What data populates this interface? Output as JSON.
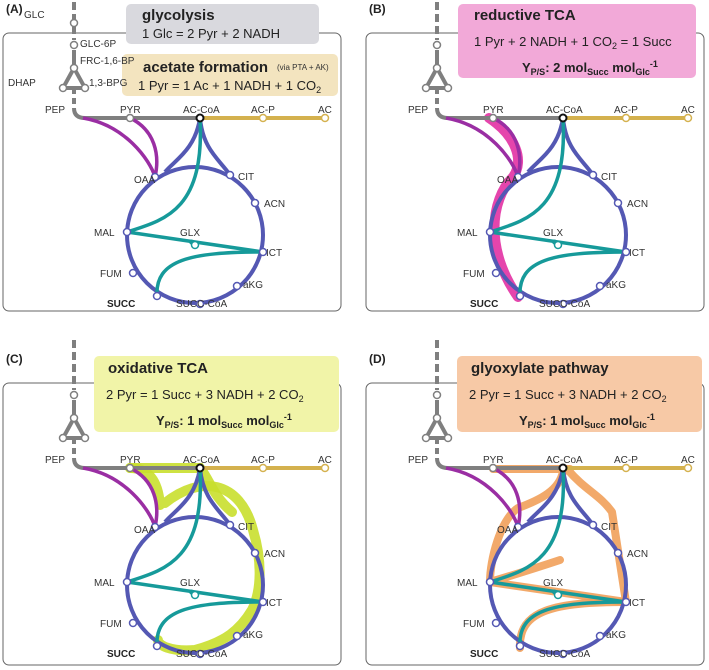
{
  "panels": [
    {
      "label": "(A)"
    },
    {
      "label": "(B)"
    },
    {
      "label": "(C)"
    },
    {
      "label": "(D)"
    }
  ],
  "metabolites": {
    "glc": "GLC",
    "glc6p": "GLC-6P",
    "frc16bp": "FRC-1,6-BP",
    "dhap": "DHAP",
    "bpg": "1,3-BPG",
    "pep": "PEP",
    "pyr": "PYR",
    "accoa": "AC-CoA",
    "acp": "AC-P",
    "ac": "AC",
    "oaa": "OAA",
    "cit": "CIT",
    "acn": "ACN",
    "mal": "MAL",
    "glx": "GLX",
    "ict": "ICT",
    "fum": "FUM",
    "akg": "aKG",
    "succ": "SUCC",
    "succcoa": "SUCC-CoA"
  },
  "boxes": {
    "glycolysis": {
      "title": "glycolysis",
      "equation": "1 Glc = 2 Pyr + 2 NADH",
      "color": "#d9d9de"
    },
    "acetate": {
      "title": "acetate formation",
      "note": "(via PTA + AK)",
      "equation": "1 Pyr = 1 Ac + 1 NADH + 1 CO",
      "eq_sub": "2",
      "color": "#f3e4bf"
    },
    "reductive": {
      "title": "reductive TCA",
      "equation": "1 Pyr + 2 NADH + 1 CO",
      "eq_sub": "2",
      "eq_tail": " = 1 Succ",
      "yield_y": "Y",
      "yield_ys": "P/S",
      "yield_val": ": 2 mol",
      "yield_s1": "Succ",
      "yield_mol": " mol",
      "yield_s2": "Glc",
      "yield_exp": "-1",
      "color": "#f2a9d8"
    },
    "oxidative": {
      "title": "oxidative TCA",
      "equation": "2 Pyr = 1 Succ + 3 NADH + 2 CO",
      "eq_sub": "2",
      "yield_y": "Y",
      "yield_ys": "P/S",
      "yield_val": ": 1 mol",
      "yield_s1": "Succ",
      "yield_mol": " mol",
      "yield_s2": "Glc",
      "yield_exp": "-1",
      "color": "#f1f4a8"
    },
    "glyoxylate": {
      "title": "glyoxylate pathway",
      "equation": "2 Pyr = 1 Succ + 3 NADH + 2 CO",
      "eq_sub": "2",
      "yield_y": "Y",
      "yield_ys": "P/S",
      "yield_val": ": 1 mol",
      "yield_s1": "Succ",
      "yield_mol": " mol",
      "yield_s2": "Glc",
      "yield_exp": "-1",
      "color": "#f7c9a6"
    }
  },
  "colors": {
    "glycolysis_line": "#7f7f7f",
    "acetate_line": "#d4b14e",
    "tca_ring": "#5458b3",
    "glyoxylate_shunt": "#169a9a",
    "anaplerotic": "#9a2ea3",
    "highlight_reductive": "#e0259e",
    "highlight_oxidative": "#c9df2d",
    "highlight_glyoxylate": "#f1a05a"
  }
}
